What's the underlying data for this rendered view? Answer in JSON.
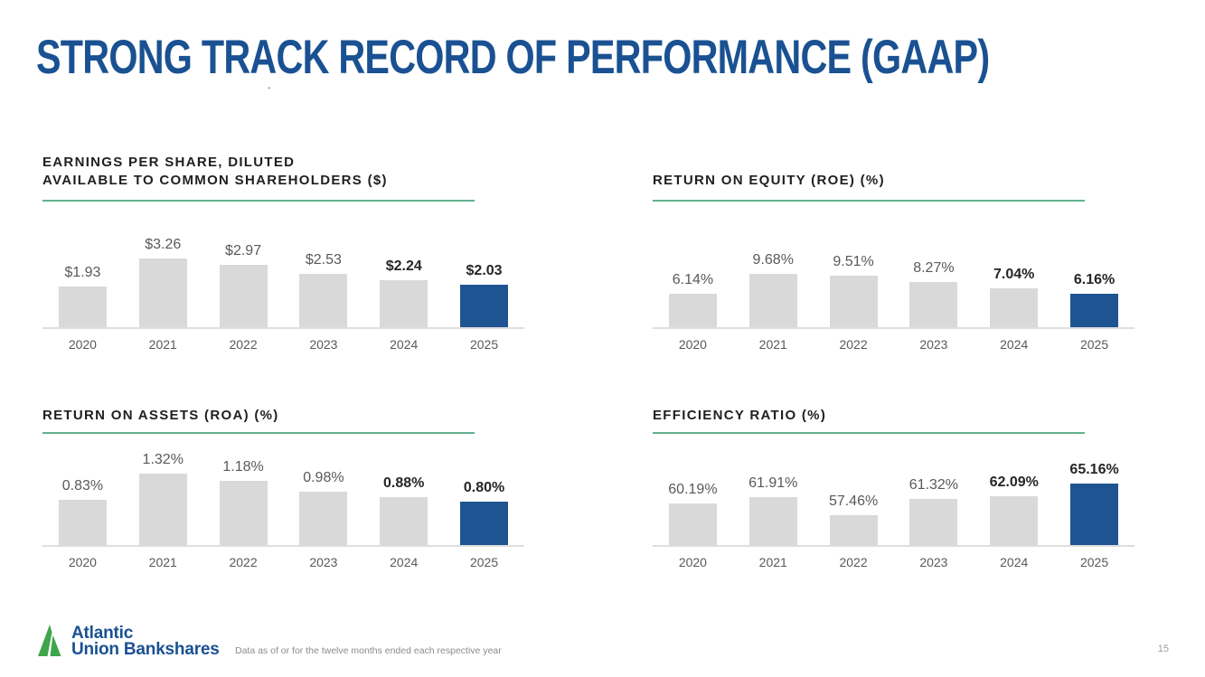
{
  "slide": {
    "title": "STRONG TRACK RECORD OF PERFORMANCE (GAAP)",
    "title_footnote_marker": ".",
    "footnote": "Data as of or for the twelve months ended each respective year",
    "page_number": "15"
  },
  "logo": {
    "line1": "Atlantic",
    "line2": "Union Bankshares",
    "mark": "mountain-peaks-icon"
  },
  "colors": {
    "title_blue": "#1A5192",
    "highlight_blue": "#1F5493",
    "bar_gray": "#D9D9D9",
    "rule_green": "#63B28F",
    "logo_green": "#3EA54B",
    "label_gray": "#595959",
    "label_bold": "#262626"
  },
  "chart_data": [
    {
      "type": "bar",
      "title_lines": [
        "EARNINGS PER SHARE, DILUTED",
        "AVAILABLE TO COMMON SHAREHOLDERS ($)"
      ],
      "categories": [
        "2020",
        "2021",
        "2022",
        "2023",
        "2024",
        "2025"
      ],
      "values": [
        1.93,
        3.26,
        2.97,
        2.53,
        2.24,
        2.03
      ],
      "value_labels": [
        "$1.93",
        "$3.26",
        "$2.97",
        "$2.53",
        "$2.24",
        "$2.03"
      ],
      "ylim": [
        0,
        6
      ],
      "grid": false,
      "legend": "none",
      "highlight_index": 5,
      "bold_from_index": 4
    },
    {
      "type": "bar",
      "title_lines": [
        "RETURN ON EQUITY (ROE) (%)"
      ],
      "categories": [
        "2020",
        "2021",
        "2022",
        "2023",
        "2024",
        "2025"
      ],
      "values": [
        6.14,
        9.68,
        9.51,
        8.27,
        7.04,
        6.16
      ],
      "value_labels": [
        "6.14%",
        "9.68%",
        "9.51%",
        "8.27%",
        "7.04%",
        "6.16%"
      ],
      "ylim": [
        0,
        23
      ],
      "grid": false,
      "legend": "none",
      "highlight_index": 5,
      "bold_from_index": 4
    },
    {
      "type": "bar",
      "title_lines": [
        "RETURN ON ASSETS (ROA) (%)"
      ],
      "categories": [
        "2020",
        "2021",
        "2022",
        "2023",
        "2024",
        "2025"
      ],
      "values": [
        0.83,
        1.32,
        1.18,
        0.98,
        0.88,
        0.8
      ],
      "value_labels": [
        "0.83%",
        "1.32%",
        "1.18%",
        "0.98%",
        "0.88%",
        "0.80%"
      ],
      "ylim": [
        0,
        2.05
      ],
      "grid": false,
      "legend": "none",
      "highlight_index": 5,
      "bold_from_index": 4
    },
    {
      "type": "bar",
      "title_lines": [
        "EFFICIENCY RATIO (%)"
      ],
      "categories": [
        "2020",
        "2021",
        "2022",
        "2023",
        "2024",
        "2025"
      ],
      "values": [
        60.19,
        61.91,
        57.46,
        61.32,
        62.09,
        65.16
      ],
      "value_labels": [
        "60.19%",
        "61.91%",
        "57.46%",
        "61.32%",
        "62.09%",
        "65.16%"
      ],
      "ylim": [
        50,
        77.5
      ],
      "grid": false,
      "legend": "none",
      "highlight_index": 5,
      "bold_from_index": 4
    }
  ]
}
